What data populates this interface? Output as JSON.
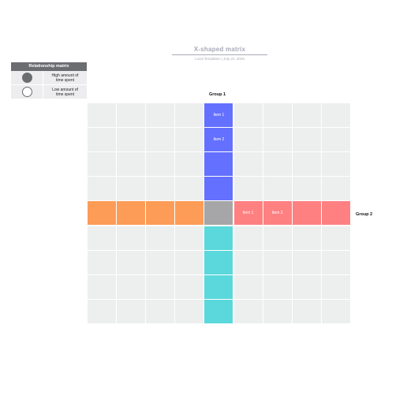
{
  "header": {
    "title": "X-shaped matrix",
    "subtitle": "Lucid Templates  |  July 22, 2025"
  },
  "legend": {
    "title": "Relationship matrix",
    "items": [
      {
        "icon": "filled-circle-icon",
        "label": "High amount of time spent",
        "fill": "#6b6d70",
        "stroke": "#6b6d70"
      },
      {
        "icon": "empty-circle-icon",
        "label": "Low amount of time spent",
        "fill": "#ffffff",
        "stroke": "#6b6d70"
      }
    ]
  },
  "matrix": {
    "group_top_label": "Group 1",
    "group_right_label": "Group 2",
    "rows": 9,
    "cols": 9,
    "center": {
      "row": 4,
      "col": 4
    },
    "colors": {
      "empty": "#edeeee",
      "top_arm": "#6470ff",
      "bottom_arm": "#5ad8db",
      "left_arm": "#fd9c56",
      "right_arm": "#fe8081",
      "center": "#a6a6a8"
    },
    "top_arm_items": [
      "Item 1",
      "Item 2",
      "",
      ""
    ],
    "right_arm_items": [
      "Item 1",
      "Item 2",
      "",
      ""
    ]
  }
}
